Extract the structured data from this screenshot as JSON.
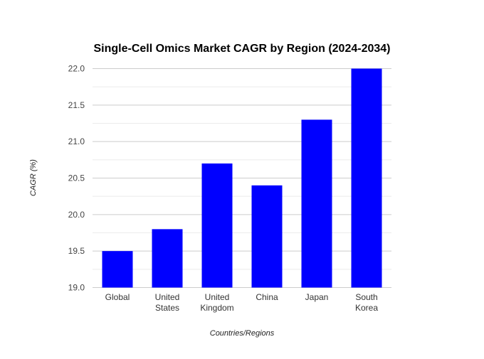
{
  "chart_data": {
    "type": "bar",
    "title": "Single-Cell Omics Market CAGR by Region (2024-2034)",
    "xlabel": "Countries/Regions",
    "ylabel": "CAGR (%)",
    "categories": [
      [
        "Global"
      ],
      [
        "United",
        "States"
      ],
      [
        "United",
        "Kingdom"
      ],
      [
        "China"
      ],
      [
        "Japan"
      ],
      [
        "South",
        "Korea"
      ]
    ],
    "values": [
      19.5,
      19.8,
      20.7,
      20.4,
      21.3,
      22.0
    ],
    "ylim": [
      19.0,
      22.0
    ],
    "yticks": [
      "19.0",
      "19.5",
      "20.0",
      "20.5",
      "21.0",
      "21.5",
      "22.0"
    ],
    "grid": true,
    "minor_grid": true,
    "bar_color": "#0000ff",
    "grid_color": "#cccccc",
    "minor_grid_color": "#ebebeb"
  }
}
